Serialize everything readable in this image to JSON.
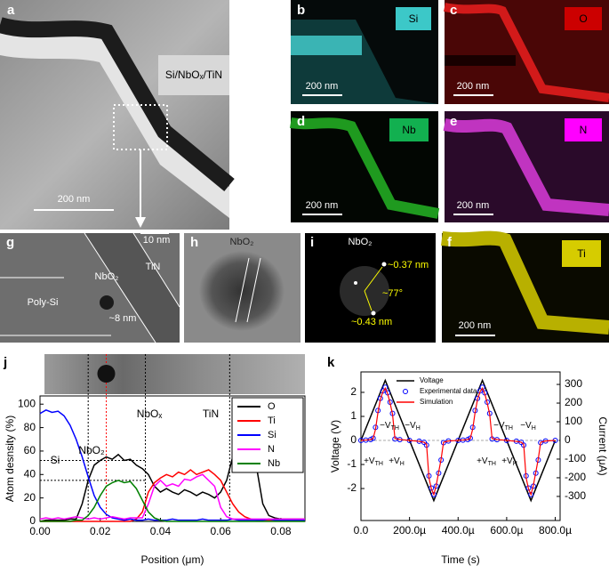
{
  "figure": {
    "a": {
      "label": "a",
      "sample": "Si/NbOₓ/TiN",
      "scale": "200 nm"
    },
    "b": {
      "label": "b",
      "element": "Si",
      "scale": "200 nm"
    },
    "c": {
      "label": "c",
      "element": "O",
      "scale": "200 nm"
    },
    "d": {
      "label": "d",
      "element": "Nb",
      "scale": "200 nm"
    },
    "e": {
      "label": "e",
      "element": "N",
      "scale": "200 nm"
    },
    "f": {
      "label": "f",
      "element": "Ti",
      "scale": "200 nm"
    },
    "g": {
      "label": "g",
      "scale": "10 nm",
      "phase": "NbO₂",
      "top": "TiN",
      "substrate": "Poly-Si",
      "size": "~8 nm"
    },
    "h": {
      "label": "h",
      "phase": "NbO₂"
    },
    "i": {
      "label": "i",
      "phase": "NbO₂",
      "d1": "~0.37 nm",
      "angle": "~77°",
      "d2": "~0.43 nm"
    },
    "j": {
      "label": "j"
    },
    "k": {
      "label": "k"
    }
  },
  "chart_data": [
    {
      "type": "line",
      "xlabel": "Position (μm)",
      "ylabel": "Atom desnsity (%)",
      "x": [
        0,
        0.002,
        0.004,
        0.006,
        0.008,
        0.01,
        0.012,
        0.014,
        0.016,
        0.018,
        0.02,
        0.022,
        0.024,
        0.026,
        0.028,
        0.03,
        0.032,
        0.034,
        0.036,
        0.038,
        0.04,
        0.042,
        0.044,
        0.046,
        0.048,
        0.05,
        0.052,
        0.054,
        0.056,
        0.058,
        0.06,
        0.062,
        0.064,
        0.066,
        0.068,
        0.07,
        0.072,
        0.074,
        0.076,
        0.078,
        0.08,
        0.082,
        0.084,
        0.086,
        0.088
      ],
      "series": [
        {
          "name": "O",
          "color": "#000000",
          "values": [
            0,
            1,
            1,
            1,
            1,
            2,
            2,
            15,
            35,
            48,
            52,
            55,
            53,
            57,
            52,
            53,
            48,
            45,
            40,
            30,
            25,
            28,
            25,
            23,
            27,
            25,
            22,
            25,
            23,
            20,
            25,
            35,
            55,
            65,
            67,
            62,
            45,
            15,
            5,
            3,
            2,
            2,
            2,
            2,
            2
          ]
        },
        {
          "name": "Ti",
          "color": "#ff0000",
          "values": [
            0,
            0,
            0,
            0,
            0,
            0,
            0,
            0,
            0,
            0,
            0,
            0,
            0,
            0,
            0,
            0,
            2,
            8,
            25,
            33,
            37,
            40,
            38,
            42,
            40,
            44,
            40,
            42,
            44,
            40,
            35,
            25,
            15,
            8,
            4,
            2,
            1,
            1,
            1,
            1,
            1,
            1,
            1,
            1,
            1
          ]
        },
        {
          "name": "Si",
          "color": "#0000ff",
          "values": [
            92,
            95,
            93,
            94,
            90,
            82,
            70,
            55,
            38,
            22,
            12,
            6,
            3,
            2,
            1,
            2,
            1,
            1,
            2,
            1,
            1,
            1,
            2,
            1,
            1,
            1,
            1,
            2,
            1,
            1,
            1,
            1,
            2,
            1,
            1,
            1,
            1,
            1,
            2,
            1,
            1,
            1,
            1,
            1,
            1
          ]
        },
        {
          "name": "N",
          "color": "#ff00ff",
          "values": [
            2,
            3,
            2,
            3,
            2,
            3,
            4,
            3,
            2,
            3,
            2,
            3,
            4,
            3,
            2,
            3,
            3,
            3,
            15,
            30,
            35,
            30,
            32,
            30,
            36,
            35,
            38,
            40,
            35,
            30,
            12,
            4,
            2,
            2,
            2,
            2,
            2,
            2,
            2,
            2,
            2,
            2,
            2,
            2,
            2
          ]
        },
        {
          "name": "Nb",
          "color": "#008000",
          "values": [
            0,
            0,
            0,
            0,
            0,
            0,
            1,
            1,
            5,
            12,
            22,
            30,
            33,
            35,
            33,
            34,
            28,
            18,
            8,
            3,
            1,
            0,
            0,
            0,
            0,
            0,
            0,
            0,
            0,
            0,
            0,
            0,
            0,
            0,
            0,
            0,
            0,
            0,
            0,
            0,
            0,
            0,
            0,
            0,
            0
          ]
        }
      ],
      "xlim": [
        0,
        0.088
      ],
      "xticks": [
        {
          "value": 0,
          "label": "0.00"
        },
        {
          "value": 0.02,
          "label": "0.02"
        },
        {
          "value": 0.04,
          "label": "0.04"
        },
        {
          "value": 0.06,
          "label": "0.06"
        },
        {
          "value": 0.08,
          "label": "0.08"
        }
      ],
      "ylim": [
        0,
        107
      ],
      "yticks": [
        0,
        20,
        40,
        60,
        80,
        100
      ],
      "reference_x": [
        0.016,
        0.035,
        0.063
      ],
      "center_x": 0.022,
      "reference_y": [
        52,
        35
      ],
      "annotations": [
        "Si",
        "NbOₓ",
        "NbO₂",
        "TiN"
      ],
      "legend": "upper right"
    },
    {
      "type": "line",
      "xlabel": "Time (s)",
      "ylabel": "Voltage (V)",
      "y2label": "Current (μA)",
      "series": [
        {
          "name": "Voltage",
          "color": "#000000",
          "axis": "y",
          "x": [
            0,
            0.0001,
            0.0003,
            0.0005,
            0.0007,
            0.0008
          ],
          "values": [
            0,
            2.5,
            -2.5,
            2.5,
            -2.5,
            0
          ]
        },
        {
          "name": "Experimental data",
          "color": "#0000ff",
          "marker": "circle",
          "axis": "y2",
          "x": [
            0,
            2e-05,
            4e-05,
            5e-05,
            6e-05,
            7e-05,
            8e-05,
            9e-05,
            0.0001,
            0.00011,
            0.00012,
            0.00013,
            0.00014,
            0.00016,
            0.0002,
            0.00024,
            0.00026,
            0.00027,
            0.00028,
            0.00029,
            0.0003,
            0.00031,
            0.00032,
            0.00033,
            0.00034,
            0.00036,
            0.0004,
            0.00042,
            0.00044,
            0.00045,
            0.00046,
            0.00047,
            0.00048,
            0.00049,
            0.0005,
            0.00051,
            0.00052,
            0.00053,
            0.00054,
            0.00056,
            0.0006,
            0.00064,
            0.00066,
            0.00067,
            0.00068,
            0.00069,
            0.0007,
            0.00071,
            0.00072,
            0.00073,
            0.00074,
            0.00076,
            0.0008
          ],
          "values": [
            0,
            2,
            5,
            12,
            70,
            160,
            225,
            265,
            285,
            255,
            205,
            145,
            8,
            4,
            0,
            -4,
            -10,
            -25,
            -190,
            -255,
            -290,
            -245,
            -175,
            -105,
            -12,
            -3,
            0,
            2,
            5,
            12,
            70,
            160,
            225,
            265,
            285,
            255,
            205,
            145,
            8,
            4,
            0,
            -4,
            -10,
            -25,
            -190,
            -255,
            -290,
            -245,
            -175,
            -105,
            -12,
            -3,
            0
          ]
        },
        {
          "name": "Simulation",
          "color": "#ff0000",
          "axis": "y2",
          "x": [
            0,
            2e-05,
            4e-05,
            5e-05,
            6e-05,
            7e-05,
            8e-05,
            9e-05,
            0.0001,
            0.00011,
            0.00012,
            0.00013,
            0.00014,
            0.00016,
            0.0002,
            0.00024,
            0.00026,
            0.00027,
            0.00028,
            0.00029,
            0.0003,
            0.00031,
            0.00032,
            0.00033,
            0.00034,
            0.00036,
            0.0004,
            0.00042,
            0.00044,
            0.00045,
            0.00046,
            0.00047,
            0.00048,
            0.00049,
            0.0005,
            0.00051,
            0.00052,
            0.00053,
            0.00054,
            0.00056,
            0.0006,
            0.00064,
            0.00066,
            0.00067,
            0.00068,
            0.00069,
            0.0007,
            0.00071,
            0.00072,
            0.00073,
            0.00074,
            0.00076,
            0.0008
          ],
          "values": [
            0,
            2,
            5,
            10,
            60,
            150,
            220,
            260,
            280,
            250,
            200,
            140,
            10,
            5,
            0,
            -5,
            -10,
            -20,
            -200,
            -260,
            -290,
            -240,
            -170,
            -100,
            -10,
            -3,
            0,
            2,
            5,
            10,
            60,
            150,
            220,
            260,
            280,
            250,
            200,
            140,
            10,
            5,
            0,
            -5,
            -10,
            -20,
            -200,
            -260,
            -290,
            -240,
            -170,
            -100,
            -10,
            -3,
            0
          ]
        }
      ],
      "xlim": [
        0,
        0.00082
      ],
      "xticks": [
        {
          "value": 0,
          "label": "0.0"
        },
        {
          "value": 0.0002,
          "label": "200.0µ"
        },
        {
          "value": 0.0004,
          "label": "400.0µ"
        },
        {
          "value": 0.0006,
          "label": "600.0µ"
        },
        {
          "value": 0.0008,
          "label": "800.0µ"
        }
      ],
      "ylim": [
        -3.33,
        2.85
      ],
      "yticks": [
        -2,
        -1,
        0,
        1,
        2
      ],
      "y2lim": [
        -429,
        367
      ],
      "y2ticks": [
        -300,
        -200,
        -100,
        0,
        100,
        200,
        300
      ],
      "annotations": [
        {
          "main": "+V",
          "sub": "TH"
        },
        {
          "main": "+V",
          "sub": "H"
        },
        {
          "main": "−V",
          "sub": "TH"
        },
        {
          "main": "−V",
          "sub": "H"
        },
        {
          "main": "+V",
          "sub": "TH"
        },
        {
          "main": "+V",
          "sub": "H"
        },
        {
          "main": "−V",
          "sub": "TH"
        },
        {
          "main": "−V",
          "sub": "H"
        }
      ],
      "legend": "upper left"
    }
  ]
}
